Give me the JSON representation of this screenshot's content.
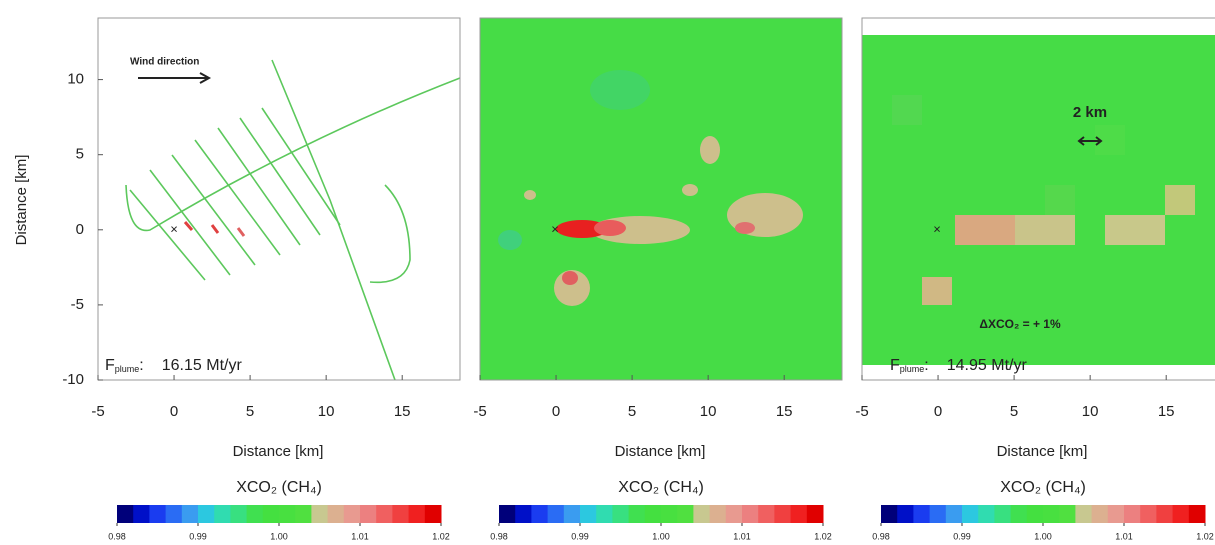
{
  "chart_data": [
    {
      "type": "map",
      "xlabel": "Distance [km]",
      "ylabel": "Distance [km]",
      "xlim": [
        -5,
        18.8
      ],
      "ylim": [
        -10,
        14.1
      ],
      "xticks": [
        -5,
        0,
        5,
        10,
        15
      ],
      "yticks": [
        -10,
        -5,
        0,
        5,
        10
      ],
      "annotations": {
        "wind": "Wind direction",
        "flux": {
          "text": "F",
          "sub": "plume",
          "suffix": ":",
          "value": "16.15 Mt/yr"
        }
      },
      "colorbar": {
        "title": "XCO₂ (CH₄)",
        "lim": [
          0.98,
          1.02
        ],
        "ticks": [
          {
            "value": 0.98,
            "label": "0.98"
          },
          {
            "value": 0.99,
            "label": "0.99"
          },
          {
            "value": 1.0,
            "label": "1.00"
          },
          {
            "value": 1.01,
            "label": "1.01"
          },
          {
            "value": 1.02,
            "label": "1.02"
          }
        ],
        "colors": [
          "#00007a",
          "#0010c8",
          "#1a3cf0",
          "#2a6cf4",
          "#3a9cf0",
          "#2cc8e0",
          "#30dcb0",
          "#38e080",
          "#40e050",
          "#44e040",
          "#48e040",
          "#50e040",
          "#c8c890",
          "#dcb090",
          "#e89a90",
          "#ec8080",
          "#f06060",
          "#f04040",
          "#f02020",
          "#e00000"
        ]
      }
    },
    {
      "type": "map",
      "xlabel": "Distance [km]",
      "xlim": [
        -5,
        18.8
      ],
      "ylim": [
        -10,
        14.1
      ],
      "xticks": [
        -5,
        0,
        5,
        10,
        15
      ],
      "colorbar": {
        "title": "XCO₂ (CH₄)",
        "lim": [
          0.98,
          1.02
        ],
        "ticks": [
          {
            "value": 0.98,
            "label": "0.98"
          },
          {
            "value": 0.99,
            "label": "0.99"
          },
          {
            "value": 1.0,
            "label": "1.00"
          },
          {
            "value": 1.01,
            "label": "1.01"
          },
          {
            "value": 1.02,
            "label": "1.02"
          }
        ],
        "colors": [
          "#00007a",
          "#0010c8",
          "#1a3cf0",
          "#2a6cf4",
          "#3a9cf0",
          "#2cc8e0",
          "#30dcb0",
          "#38e080",
          "#40e050",
          "#44e040",
          "#48e040",
          "#50e040",
          "#c8c890",
          "#dcb090",
          "#e89a90",
          "#ec8080",
          "#f06060",
          "#f04040",
          "#f02020",
          "#e00000"
        ]
      }
    },
    {
      "type": "map",
      "xlabel": "Distance [km]",
      "xlim": [
        -5,
        18.8
      ],
      "ylim": [
        -10,
        14.1
      ],
      "xticks": [
        -5,
        0,
        5,
        10,
        15
      ],
      "annotations": {
        "scale": "2 km",
        "delta": "ΔXCO₂ = + 1%",
        "flux": {
          "text": "F",
          "sub": "plume",
          "suffix": ":",
          "value": "14.95 Mt/yr"
        }
      },
      "colorbar": {
        "title": "XCO₂ (CH₄)",
        "lim": [
          0.98,
          1.02
        ],
        "ticks": [
          {
            "value": 0.98,
            "label": "0.98"
          },
          {
            "value": 0.99,
            "label": "0.99"
          },
          {
            "value": 1.0,
            "label": "1.00"
          },
          {
            "value": 1.01,
            "label": "1.01"
          },
          {
            "value": 1.02,
            "label": "1.02"
          }
        ],
        "colors": [
          "#00007a",
          "#0010c8",
          "#1a3cf0",
          "#2a6cf4",
          "#3a9cf0",
          "#2cc8e0",
          "#30dcb0",
          "#38e080",
          "#40e050",
          "#44e040",
          "#48e040",
          "#50e040",
          "#c8c890",
          "#dcb090",
          "#e89a90",
          "#ec8080",
          "#f06060",
          "#f04040",
          "#f02020",
          "#e00000"
        ]
      }
    }
  ]
}
